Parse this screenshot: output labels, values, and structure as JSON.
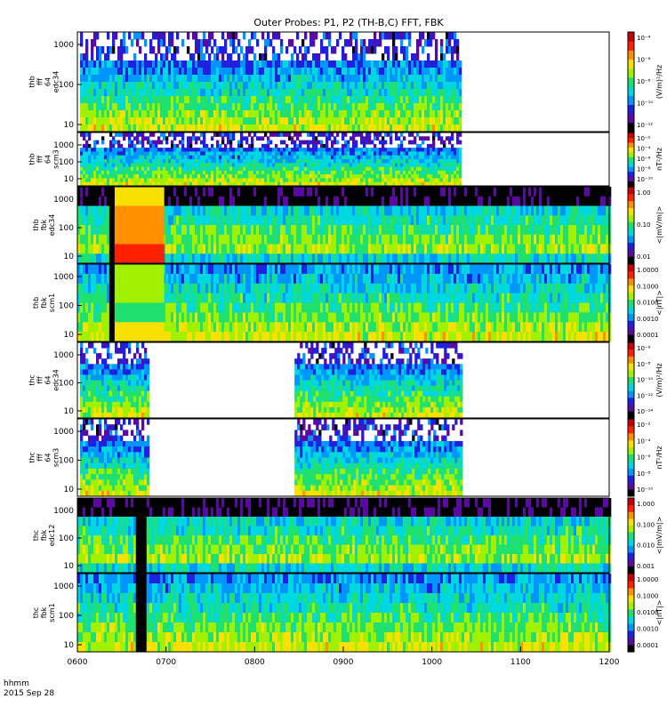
{
  "title": "Outer Probes: P1, P2 (TH-B,C) FFT, FBK",
  "footer": {
    "line1": "hhmm",
    "line2": "2015 Sep 28"
  },
  "x_axis": {
    "ticks": [
      "0600",
      "0700",
      "0800",
      "0900",
      "1000",
      "1100",
      "1200"
    ],
    "range_hours": [
      6,
      12
    ]
  },
  "colormap": [
    "#000000",
    "#5a0aa0",
    "#2020e0",
    "#0096ff",
    "#00d8e0",
    "#20e070",
    "#a0f000",
    "#f8e000",
    "#ff9000",
    "#ff2000",
    "#c80000"
  ],
  "chart_data": [
    {
      "type": "heatmap",
      "label": [
        "thb",
        "fff",
        "64",
        "edc34"
      ],
      "y_ticks": [
        "10",
        "100",
        "1000"
      ],
      "colorbar_label": "(V/m)²/Hz",
      "colorbar_ticks": [
        "10⁻⁴",
        "10⁻⁶",
        "10⁻⁸",
        "10⁻¹⁰",
        "10⁻¹²"
      ],
      "coverage_hours": [
        [
          6.03,
          10.33
        ]
      ]
    },
    {
      "type": "heatmap",
      "label": [
        "thb",
        "fff",
        "64",
        "scm3"
      ],
      "y_ticks": [
        "10",
        "100",
        "1000"
      ],
      "colorbar_label": "nT²/Hz",
      "colorbar_ticks": [
        "10⁻²",
        "10⁻⁴",
        "10⁻⁶",
        "10⁻⁸",
        "10⁻¹⁰"
      ],
      "coverage_hours": [
        [
          6.03,
          10.33
        ]
      ]
    },
    {
      "type": "heatmap",
      "label": [
        "thb",
        "fbk",
        "edc34"
      ],
      "y_ticks": [
        "10",
        "100",
        "1000"
      ],
      "colorbar_label": "<|mV/m|>",
      "colorbar_ticks": [
        "1.00",
        "0.10",
        "0.01"
      ],
      "coverage_hours": [
        [
          6.0,
          12.0
        ]
      ]
    },
    {
      "type": "heatmap",
      "label": [
        "thb",
        "fbk",
        "scm1"
      ],
      "y_ticks": [
        "10",
        "100",
        "1000"
      ],
      "colorbar_label": "<|nT|>",
      "colorbar_ticks": [
        "1.0000",
        "0.1000",
        "0.0100",
        "0.0010",
        "0.0001"
      ],
      "coverage_hours": [
        [
          6.0,
          12.0
        ]
      ]
    },
    {
      "type": "heatmap",
      "label": [
        "thc",
        "fff",
        "64",
        "edc34"
      ],
      "y_ticks": [
        "10",
        "100",
        "1000"
      ],
      "colorbar_label": "(V/m)²/Hz",
      "colorbar_ticks": [
        "10⁻⁶",
        "10⁻⁸",
        "10⁻¹⁰",
        "10⁻¹²",
        "10⁻¹⁴"
      ],
      "coverage_hours": [
        [
          6.03,
          6.8
        ],
        [
          8.45,
          10.33
        ]
      ]
    },
    {
      "type": "heatmap",
      "label": [
        "thc",
        "fff",
        "64",
        "scm3"
      ],
      "y_ticks": [
        "10",
        "100",
        "1000"
      ],
      "colorbar_label": "nT²/Hz",
      "colorbar_ticks": [
        "10⁻²",
        "10⁻⁴",
        "10⁻⁶",
        "10⁻⁸",
        "10⁻¹⁰"
      ],
      "coverage_hours": [
        [
          6.03,
          6.8
        ],
        [
          8.45,
          10.33
        ]
      ]
    },
    {
      "type": "heatmap",
      "label": [
        "thc",
        "fbk",
        "edc12"
      ],
      "y_ticks": [
        "10",
        "100",
        "1000"
      ],
      "colorbar_label": "<|mV/m|>",
      "colorbar_ticks": [
        "1.000",
        "0.100",
        "0.010",
        "0.001"
      ],
      "coverage_hours": [
        [
          6.0,
          12.0
        ]
      ]
    },
    {
      "type": "heatmap",
      "label": [
        "thc",
        "fbk",
        "scm1"
      ],
      "y_ticks": [
        "10",
        "100",
        "1000"
      ],
      "colorbar_label": "<|nT|>",
      "colorbar_ticks": [
        "1.0000",
        "0.1000",
        "0.0100",
        "0.0010",
        "0.0001"
      ],
      "coverage_hours": [
        [
          6.0,
          12.0
        ]
      ]
    }
  ]
}
